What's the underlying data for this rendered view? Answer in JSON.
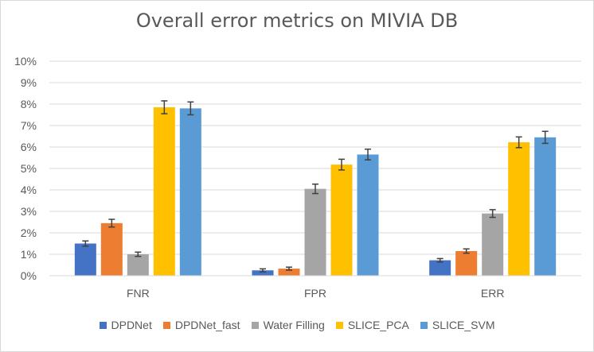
{
  "chart_data": {
    "type": "bar",
    "title": "Overall error metrics on MIVIA DB",
    "categories": [
      "FNR",
      "FPR",
      "ERR"
    ],
    "ylim": [
      0,
      10
    ],
    "yticks": [
      "0%",
      "1%",
      "2%",
      "3%",
      "4%",
      "5%",
      "6%",
      "7%",
      "8%",
      "9%",
      "10%"
    ],
    "ytick_values": [
      0,
      1,
      2,
      3,
      4,
      5,
      6,
      7,
      8,
      9,
      10
    ],
    "legend_position": "bottom",
    "series": [
      {
        "name": "DPDNet",
        "color": "#4472c4",
        "values": [
          1.5,
          0.25,
          0.72
        ],
        "errors": [
          0.12,
          0.07,
          0.08
        ]
      },
      {
        "name": "DPDNet_fast",
        "color": "#ed7d31",
        "values": [
          2.45,
          0.33,
          1.15
        ],
        "errors": [
          0.18,
          0.07,
          0.1
        ]
      },
      {
        "name": "Water Filling",
        "color": "#a5a5a5",
        "values": [
          1.0,
          4.05,
          2.9
        ],
        "errors": [
          0.1,
          0.22,
          0.18
        ]
      },
      {
        "name": "SLICE_PCA",
        "color": "#ffc000",
        "values": [
          7.85,
          5.18,
          6.22
        ],
        "errors": [
          0.3,
          0.25,
          0.25
        ]
      },
      {
        "name": "SLICE_SVM",
        "color": "#5b9bd5",
        "values": [
          7.8,
          5.65,
          6.45
        ],
        "errors": [
          0.3,
          0.25,
          0.28
        ]
      }
    ]
  }
}
